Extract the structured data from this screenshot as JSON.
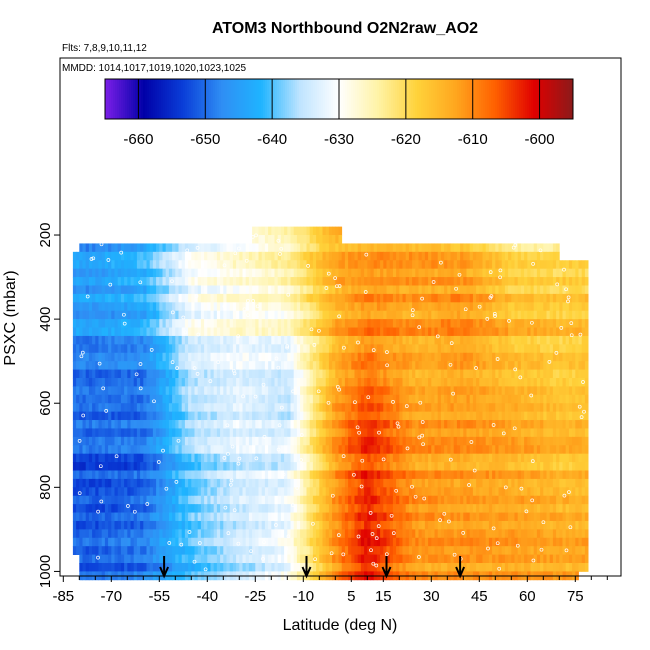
{
  "chart_data": {
    "type": "heatmap",
    "title": "ATOM3 Northbound O2N2raw_AO2",
    "subtitle_flights": "Flts: 7,8,9,10,11,12",
    "subtitle_dates": "MMDD: 1014,1017,1019,1020,1023,1025",
    "xlabel": "Latitude (deg N)",
    "ylabel": "PSXC (mbar)",
    "xlim": [
      -85,
      87
    ],
    "ylim": [
      1010,
      150
    ],
    "x_ticks": [
      -85,
      -70,
      -55,
      -40,
      -25,
      -10,
      5,
      15,
      30,
      45,
      60,
      75
    ],
    "x_tick_labels": [
      "-85",
      "-70",
      "-55",
      "-40",
      "-25",
      "-10",
      "5",
      "15",
      "30",
      "45",
      "60",
      "75"
    ],
    "y_ticks": [
      200,
      400,
      600,
      800,
      1000
    ],
    "y_tick_labels": [
      "200",
      "400",
      "600",
      "800",
      "1000"
    ],
    "colorbar": {
      "range": [
        -665,
        -595
      ],
      "ticks": [
        -660,
        -650,
        -640,
        -630,
        -620,
        -610,
        -600
      ],
      "tick_labels": [
        "-660",
        "-650",
        "-640",
        "-630",
        "-620",
        "-610",
        "-600"
      ],
      "colors": [
        "#7c1fe8",
        "#0000a8",
        "#0a3ed8",
        "#2f8ef4",
        "#1fb4ff",
        "#bfe4ff",
        "#ffffff",
        "#fff3a6",
        "#ffd23a",
        "#ffa61e",
        "#ff6000",
        "#e00000",
        "#8c1a1a"
      ]
    },
    "arrow_latitudes": [
      -53.5,
      -9,
      16,
      39
    ],
    "series": [
      {
        "name": "lat -75",
        "x": -75,
        "values_by_pressure": {
          "200": -646,
          "400": -645,
          "600": -650,
          "800": -653,
          "1000": -652
        }
      },
      {
        "name": "lat -60",
        "x": -60,
        "values_by_pressure": {
          "200": -642,
          "400": -643,
          "600": -650,
          "800": -652,
          "1000": -650
        }
      },
      {
        "name": "lat -45",
        "x": -45,
        "values_by_pressure": {
          "200": -632,
          "400": -630,
          "600": -636,
          "800": -640,
          "1000": -642
        }
      },
      {
        "name": "lat -30",
        "x": -30,
        "values_by_pressure": {
          "200": -628,
          "400": -628,
          "600": -633,
          "800": -635,
          "1000": -637
        }
      },
      {
        "name": "lat -15",
        "x": -15,
        "values_by_pressure": {
          "200": -624,
          "400": -627,
          "600": -636,
          "800": -633,
          "1000": -632
        }
      },
      {
        "name": "lat 0",
        "x": 0,
        "values_by_pressure": {
          "200": -614,
          "400": -614,
          "600": -612,
          "800": -612,
          "1000": -612
        }
      },
      {
        "name": "lat 10",
        "x": 10,
        "values_by_pressure": {
          "200": -613,
          "400": -610,
          "600": -605,
          "800": -604,
          "1000": -603
        }
      },
      {
        "name": "lat 25",
        "x": 25,
        "values_by_pressure": {
          "200": -613,
          "400": -612,
          "600": -613,
          "800": -612,
          "1000": -613
        }
      },
      {
        "name": "lat 40",
        "x": 40,
        "values_by_pressure": {
          "200": -615,
          "400": -610,
          "600": -612,
          "800": -613,
          "1000": -613
        }
      },
      {
        "name": "lat 55",
        "x": 55,
        "values_by_pressure": {
          "200": -622,
          "400": -615,
          "600": -614,
          "800": -614,
          "1000": -613
        }
      },
      {
        "name": "lat 70",
        "x": 70,
        "values_by_pressure": {
          "200": -622,
          "400": -616,
          "600": -616,
          "800": -616,
          "1000": -614
        }
      }
    ]
  }
}
